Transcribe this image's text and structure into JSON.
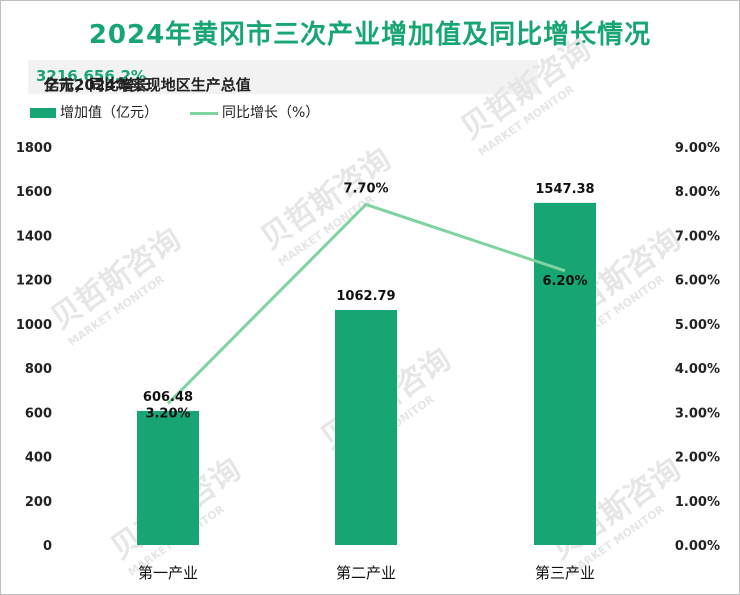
{
  "title": "2024年黄冈市三次产业增加值及同比增长情况",
  "subtitle": {
    "prefix": "全市2024年实现地区生产总值",
    "value": "3216.65",
    "mid": "亿元，同比增长",
    "growth": "6.2%"
  },
  "watermark": {
    "cn": "贝哲斯咨询",
    "en": "MARKET MONITOR"
  },
  "colors": {
    "bar": "#17a673",
    "line": "#7fd39f",
    "accent": "#17a673"
  },
  "chart_data": {
    "type": "bar",
    "title": "2024年黄冈市三次产业增加值及同比增长情况",
    "categories": [
      "第一产业",
      "第二产业",
      "第三产业"
    ],
    "series": [
      {
        "name": "增加值（亿元）",
        "type": "bar",
        "axis": "left",
        "values": [
          606.48,
          1062.79,
          1547.38
        ],
        "labels": [
          "606.48",
          "1062.79",
          "1547.38"
        ]
      },
      {
        "name": "同比增长（%）",
        "type": "line",
        "axis": "right",
        "values": [
          3.2,
          7.7,
          6.2
        ],
        "labels": [
          "3.20%",
          "7.70%",
          "6.20%"
        ]
      }
    ],
    "y_left": {
      "min": 0,
      "max": 1800,
      "ticks": [
        "0",
        "200",
        "400",
        "600",
        "800",
        "1000",
        "1200",
        "1400",
        "1600",
        "1800"
      ]
    },
    "y_right": {
      "min": 0,
      "max": 9,
      "ticks": [
        "0.00%",
        "1.00%",
        "2.00%",
        "3.00%",
        "4.00%",
        "5.00%",
        "6.00%",
        "7.00%",
        "8.00%",
        "9.00%"
      ]
    },
    "legend_position": "top-left",
    "grid": false
  }
}
